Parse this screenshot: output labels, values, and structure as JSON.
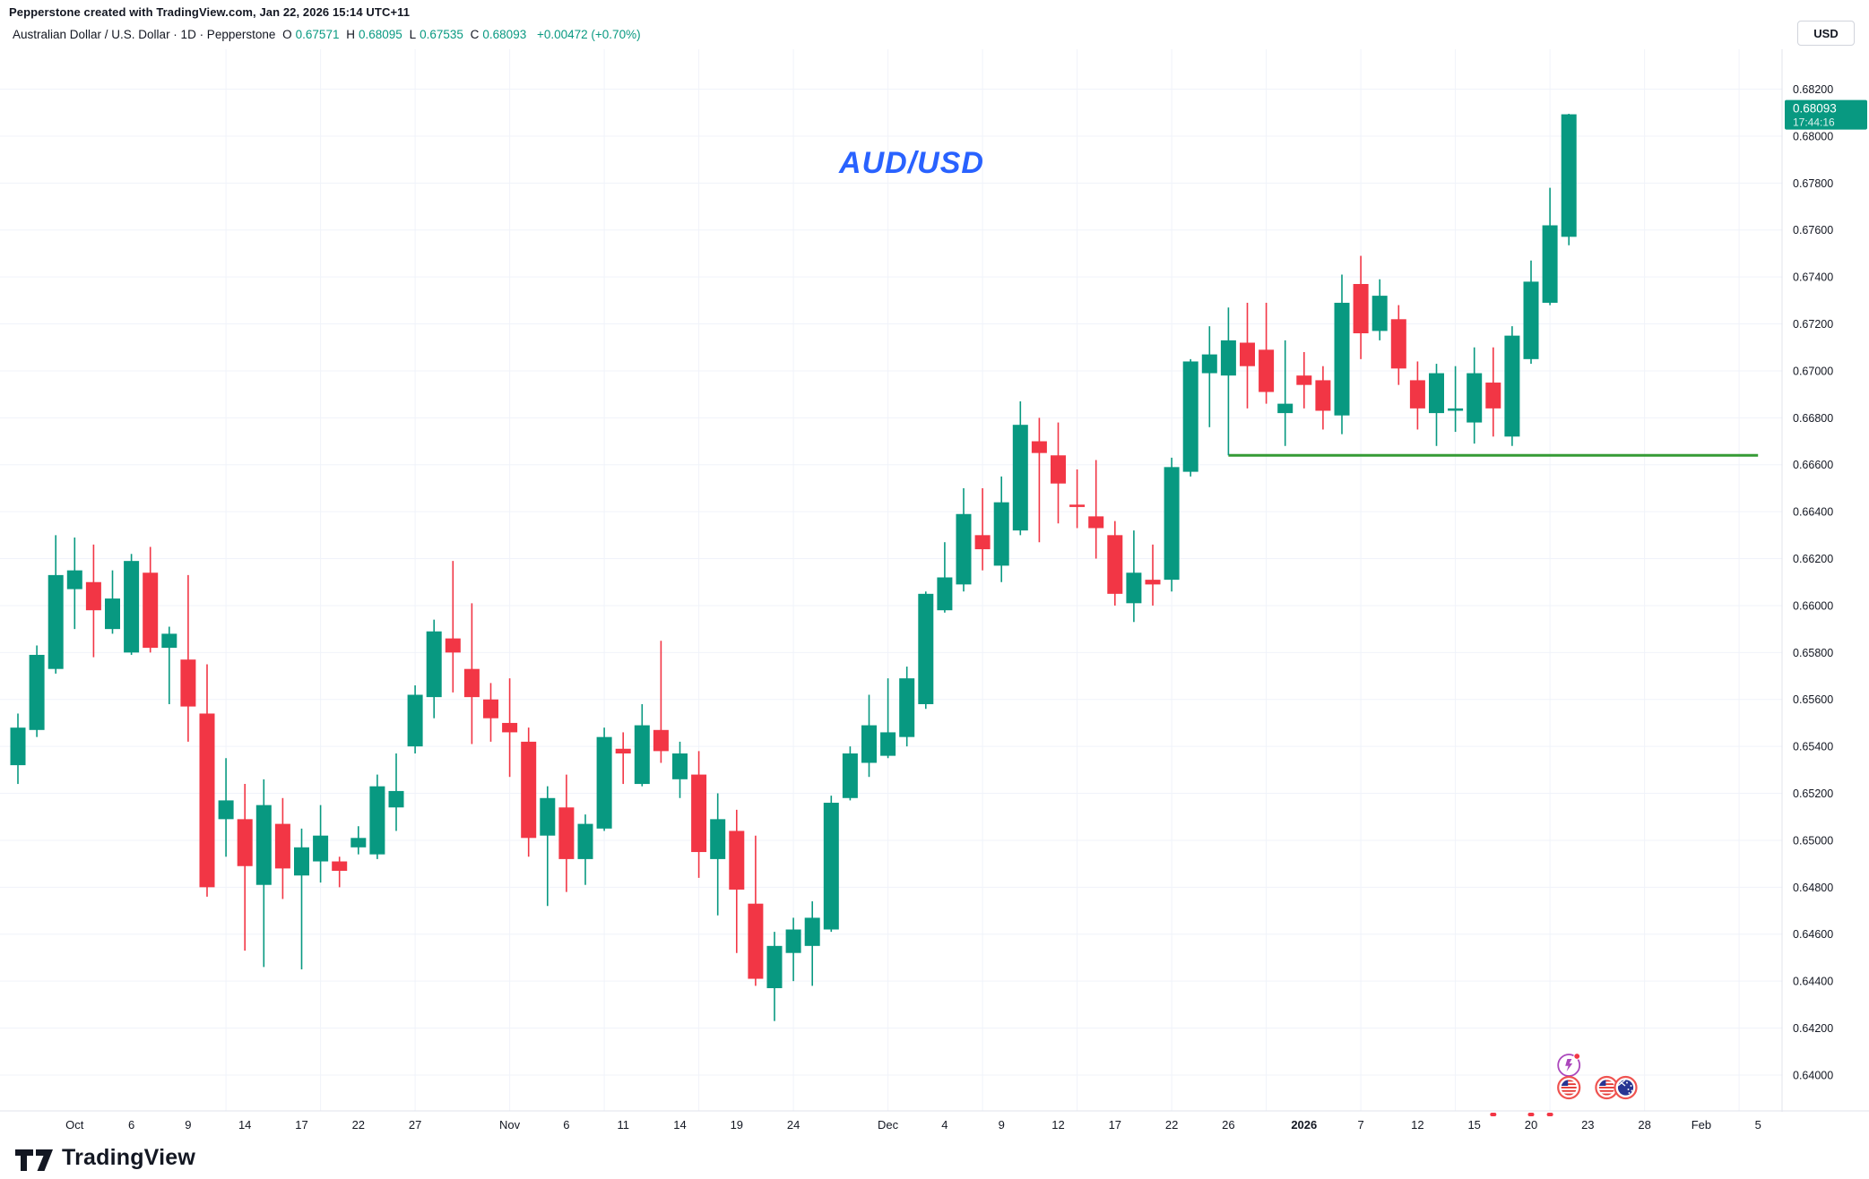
{
  "header": {
    "attribution": "Pepperstone created with TradingView.com, Jan 22, 2026 15:14 UTC+11",
    "symbol_title": "Australian Dollar / U.S. Dollar · 1D · Pepperstone",
    "ohlc": {
      "o_label": "O",
      "o": "0.67571",
      "h_label": "H",
      "h": "0.68095",
      "l_label": "L",
      "l": "0.67535",
      "c_label": "C",
      "c": "0.68093",
      "change": "+0.00472 (+0.70%)"
    },
    "currency_label": "USD"
  },
  "annotation": {
    "text": "AUD/USD",
    "color": "#2962ff"
  },
  "price_axis": {
    "ticks": [
      "0.68200",
      "0.68000",
      "0.67800",
      "0.67600",
      "0.67400",
      "0.67200",
      "0.67000",
      "0.66800",
      "0.66600",
      "0.66400",
      "0.66200",
      "0.66000",
      "0.65800",
      "0.65600",
      "0.65400",
      "0.65200",
      "0.65000",
      "0.64800",
      "0.64600",
      "0.64400",
      "0.64200",
      "0.64000"
    ],
    "badge": {
      "price": "0.68093",
      "countdown": "17:44:16"
    }
  },
  "time_axis": {
    "labels": [
      {
        "text": "Oct",
        "index": 3
      },
      {
        "text": "6",
        "index": 6
      },
      {
        "text": "9",
        "index": 9
      },
      {
        "text": "14",
        "index": 12
      },
      {
        "text": "17",
        "index": 15
      },
      {
        "text": "22",
        "index": 18
      },
      {
        "text": "27",
        "index": 21
      },
      {
        "text": "Nov",
        "index": 26
      },
      {
        "text": "6",
        "index": 29
      },
      {
        "text": "11",
        "index": 32
      },
      {
        "text": "14",
        "index": 35
      },
      {
        "text": "19",
        "index": 38
      },
      {
        "text": "24",
        "index": 41
      },
      {
        "text": "Dec",
        "index": 46
      },
      {
        "text": "4",
        "index": 49
      },
      {
        "text": "9",
        "index": 52
      },
      {
        "text": "12",
        "index": 55
      },
      {
        "text": "17",
        "index": 58
      },
      {
        "text": "22",
        "index": 61
      },
      {
        "text": "26",
        "index": 64
      },
      {
        "text": "2026",
        "index": 68,
        "bold": true
      },
      {
        "text": "7",
        "index": 71
      },
      {
        "text": "12",
        "index": 74
      },
      {
        "text": "15",
        "index": 77
      },
      {
        "text": "20",
        "index": 80
      },
      {
        "text": "23",
        "index": 83
      },
      {
        "text": "28",
        "index": 86
      },
      {
        "text": "Feb",
        "index": 89
      },
      {
        "text": "5",
        "index": 92
      }
    ]
  },
  "footer": {
    "logo_text": "TradingView"
  },
  "colors": {
    "up": "#089981",
    "down": "#f23645",
    "support_line": "#359b35",
    "annotation": "#2962ff",
    "axis_text": "#131722",
    "grid": "#f0f3fa",
    "badge_bg": "#089981",
    "separator": "#e0e3eb",
    "event_ring_red": "#ef5350",
    "event_ring_purple": "#ab47bc"
  },
  "chart_data": {
    "type": "candlestick",
    "title": "AUD/USD",
    "symbol": "Australian Dollar / U.S. Dollar",
    "timeframe": "1D",
    "broker": "Pepperstone",
    "ylim": [
      0.6385,
      0.6837
    ],
    "grid": true,
    "candle_columns": [
      "date",
      "open",
      "high",
      "low",
      "close"
    ],
    "candles": [
      [
        "Sep 26",
        0.6532,
        0.6554,
        0.6524,
        0.6548
      ],
      [
        "Sep 29",
        0.6547,
        0.6583,
        0.6544,
        0.6579
      ],
      [
        "Sep 30",
        0.6573,
        0.663,
        0.6571,
        0.6613
      ],
      [
        "Oct 1",
        0.6607,
        0.6629,
        0.659,
        0.6615
      ],
      [
        "Oct 2",
        0.661,
        0.6626,
        0.6578,
        0.6598
      ],
      [
        "Oct 3",
        0.659,
        0.6615,
        0.6588,
        0.6603
      ],
      [
        "Oct 6",
        0.658,
        0.6622,
        0.6579,
        0.6619
      ],
      [
        "Oct 7",
        0.6614,
        0.6625,
        0.658,
        0.6582
      ],
      [
        "Oct 8",
        0.6582,
        0.6591,
        0.6558,
        0.6588
      ],
      [
        "Oct 9",
        0.6577,
        0.6613,
        0.6542,
        0.6557
      ],
      [
        "Oct 10",
        0.6554,
        0.6575,
        0.6476,
        0.648
      ],
      [
        "Oct 13",
        0.6509,
        0.6535,
        0.6493,
        0.6517
      ],
      [
        "Oct 14",
        0.6509,
        0.6524,
        0.6453,
        0.6489
      ],
      [
        "Oct 15",
        0.6481,
        0.6526,
        0.6446,
        0.6515
      ],
      [
        "Oct 16",
        0.6507,
        0.6518,
        0.6475,
        0.6488
      ],
      [
        "Oct 17",
        0.6485,
        0.6505,
        0.6445,
        0.6497
      ],
      [
        "Oct 20",
        0.6491,
        0.6515,
        0.6482,
        0.6502
      ],
      [
        "Oct 21",
        0.6491,
        0.6493,
        0.648,
        0.6487
      ],
      [
        "Oct 22",
        0.6497,
        0.6506,
        0.6494,
        0.6501
      ],
      [
        "Oct 23",
        0.6494,
        0.6528,
        0.6492,
        0.6523
      ],
      [
        "Oct 24",
        0.6514,
        0.6537,
        0.6504,
        0.6521
      ],
      [
        "Oct 27",
        0.654,
        0.6566,
        0.6537,
        0.6562
      ],
      [
        "Oct 28",
        0.6561,
        0.6594,
        0.6552,
        0.6589
      ],
      [
        "Oct 29",
        0.6586,
        0.6619,
        0.6563,
        0.658
      ],
      [
        "Oct 30",
        0.6573,
        0.6601,
        0.6541,
        0.6561
      ],
      [
        "Oct 31",
        0.656,
        0.6567,
        0.6542,
        0.6552
      ],
      [
        "Nov 3",
        0.655,
        0.6569,
        0.6527,
        0.6546
      ],
      [
        "Nov 4",
        0.6542,
        0.6548,
        0.6493,
        0.6501
      ],
      [
        "Nov 5",
        0.6502,
        0.6523,
        0.6472,
        0.6518
      ],
      [
        "Nov 6",
        0.6514,
        0.6528,
        0.6478,
        0.6492
      ],
      [
        "Nov 7",
        0.6492,
        0.6511,
        0.6481,
        0.6507
      ],
      [
        "Nov 10",
        0.6505,
        0.6548,
        0.6504,
        0.6544
      ],
      [
        "Nov 11",
        0.6539,
        0.6546,
        0.6524,
        0.6537
      ],
      [
        "Nov 12",
        0.6524,
        0.6558,
        0.6523,
        0.6549
      ],
      [
        "Nov 13",
        0.6547,
        0.6585,
        0.6533,
        0.6538
      ],
      [
        "Nov 14",
        0.6526,
        0.6542,
        0.6518,
        0.6537
      ],
      [
        "Nov 17",
        0.6528,
        0.6538,
        0.6484,
        0.6495
      ],
      [
        "Nov 18",
        0.6492,
        0.652,
        0.6468,
        0.6509
      ],
      [
        "Nov 19",
        0.6504,
        0.6513,
        0.6452,
        0.6479
      ],
      [
        "Nov 20",
        0.6473,
        0.6502,
        0.6438,
        0.6441
      ],
      [
        "Nov 21",
        0.6437,
        0.6461,
        0.6423,
        0.6455
      ],
      [
        "Nov 24",
        0.6452,
        0.6467,
        0.644,
        0.6462
      ],
      [
        "Nov 25",
        0.6455,
        0.6474,
        0.6438,
        0.6467
      ],
      [
        "Nov 26",
        0.6462,
        0.6519,
        0.6461,
        0.6516
      ],
      [
        "Nov 27",
        0.6518,
        0.654,
        0.6517,
        0.6537
      ],
      [
        "Nov 28",
        0.6533,
        0.6562,
        0.6527,
        0.6549
      ],
      [
        "Dec 1",
        0.6536,
        0.6569,
        0.6535,
        0.6546
      ],
      [
        "Dec 2",
        0.6544,
        0.6574,
        0.654,
        0.6569
      ],
      [
        "Dec 3",
        0.6558,
        0.6606,
        0.6556,
        0.6605
      ],
      [
        "Dec 4",
        0.6598,
        0.6627,
        0.6597,
        0.6612
      ],
      [
        "Dec 5",
        0.6609,
        0.665,
        0.6606,
        0.6639
      ],
      [
        "Dec 8",
        0.663,
        0.665,
        0.6615,
        0.6624
      ],
      [
        "Dec 9",
        0.6617,
        0.6655,
        0.661,
        0.6644
      ],
      [
        "Dec 10",
        0.6632,
        0.6687,
        0.663,
        0.6677
      ],
      [
        "Dec 11",
        0.667,
        0.668,
        0.6627,
        0.6665
      ],
      [
        "Dec 12",
        0.6664,
        0.6678,
        0.6635,
        0.6652
      ],
      [
        "Dec 15",
        0.6643,
        0.6658,
        0.6633,
        0.6642
      ],
      [
        "Dec 16",
        0.6638,
        0.6662,
        0.662,
        0.6633
      ],
      [
        "Dec 17",
        0.663,
        0.6636,
        0.66,
        0.6605
      ],
      [
        "Dec 18",
        0.6601,
        0.6632,
        0.6593,
        0.6614
      ],
      [
        "Dec 19",
        0.6611,
        0.6626,
        0.66,
        0.6609
      ],
      [
        "Dec 22",
        0.6611,
        0.6663,
        0.6606,
        0.6659
      ],
      [
        "Dec 23",
        0.6657,
        0.6705,
        0.6655,
        0.6704
      ],
      [
        "Dec 24",
        0.6699,
        0.6719,
        0.6676,
        0.6707
      ],
      [
        "Dec 26",
        0.6698,
        0.6727,
        0.6664,
        0.6713
      ],
      [
        "Dec 29",
        0.6712,
        0.6729,
        0.6684,
        0.6702
      ],
      [
        "Dec 30",
        0.6709,
        0.6729,
        0.6686,
        0.6691
      ],
      [
        "Dec 31",
        0.6682,
        0.6713,
        0.6668,
        0.6686
      ],
      [
        "Jan 2",
        0.6698,
        0.6708,
        0.6684,
        0.6694
      ],
      [
        "Jan 5",
        0.6696,
        0.6702,
        0.6675,
        0.6683
      ],
      [
        "Jan 6",
        0.6681,
        0.6741,
        0.6673,
        0.6729
      ],
      [
        "Jan 7",
        0.6737,
        0.6749,
        0.6705,
        0.6716
      ],
      [
        "Jan 8",
        0.6717,
        0.6739,
        0.6713,
        0.6732
      ],
      [
        "Jan 9",
        0.6722,
        0.6728,
        0.6694,
        0.6701
      ],
      [
        "Jan 12",
        0.6696,
        0.6704,
        0.6675,
        0.6684
      ],
      [
        "Jan 13",
        0.6682,
        0.6703,
        0.6668,
        0.6699
      ],
      [
        "Jan 14",
        0.6683,
        0.6702,
        0.6674,
        0.6684
      ],
      [
        "Jan 15",
        0.6678,
        0.671,
        0.6669,
        0.6699
      ],
      [
        "Jan 16",
        0.6695,
        0.671,
        0.6672,
        0.6684
      ],
      [
        "Jan 19",
        0.6672,
        0.6719,
        0.6668,
        0.6715
      ],
      [
        "Jan 20",
        0.6705,
        0.6747,
        0.6703,
        0.6738
      ],
      [
        "Jan 21",
        0.6729,
        0.6778,
        0.6728,
        0.6762
      ],
      [
        "Jan 22",
        0.67571,
        0.68095,
        0.67535,
        0.68093
      ]
    ],
    "last_price": 0.68093,
    "support_line": {
      "price": 0.6664,
      "start_index": 64,
      "end_index": 92
    },
    "events": {
      "chart_icons": [
        {
          "icon": "flash-economic-event-icon",
          "index": 82
        },
        {
          "icon": "us-flag-icon",
          "index": 82
        },
        {
          "icon": "us-flag-icon",
          "index": 84
        },
        {
          "icon": "au-flag-icon",
          "index": 85
        }
      ],
      "time_axis_dots": [
        {
          "index": 78
        },
        {
          "index": 80
        },
        {
          "index": 81
        }
      ]
    }
  }
}
